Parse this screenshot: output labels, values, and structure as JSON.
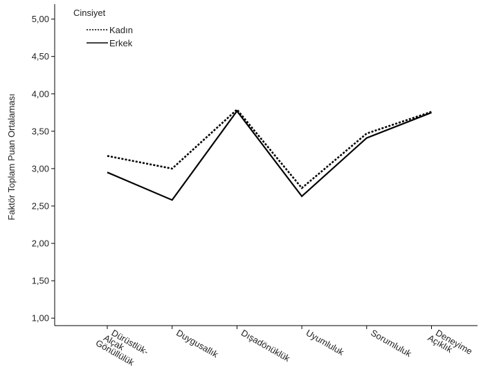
{
  "chart_data": {
    "type": "line",
    "ylabel": "Faktör Toplam Puan Ortalaması",
    "xlabel": "",
    "ylim": [
      0.9,
      5.2
    ],
    "yticks": [
      "1,00",
      "1,50",
      "2,00",
      "2,50",
      "3,00",
      "3,50",
      "4,00",
      "4,50",
      "5,00"
    ],
    "ytick_values": [
      1.0,
      1.5,
      2.0,
      2.5,
      3.0,
      3.5,
      4.0,
      4.5,
      5.0
    ],
    "categories": [
      [
        "Dürüstlük-",
        "Alçak",
        "Gönüllülük"
      ],
      [
        "Duygusallık"
      ],
      [
        "Dışadönüklük"
      ],
      [
        "Uyumluluk"
      ],
      [
        "Sorumluluk"
      ],
      [
        "Deneyime",
        "Açıklık"
      ]
    ],
    "legend": {
      "title": "Cinsiyet",
      "position": "top-left"
    },
    "series": [
      {
        "name": "Kadın",
        "style": "dashed",
        "color": "#000000",
        "values": [
          3.17,
          3.0,
          3.79,
          2.74,
          3.47,
          3.76
        ]
      },
      {
        "name": "Erkek",
        "style": "solid",
        "color": "#000000",
        "values": [
          2.95,
          2.58,
          3.77,
          2.63,
          3.41,
          3.75
        ]
      }
    ],
    "grid": false
  }
}
